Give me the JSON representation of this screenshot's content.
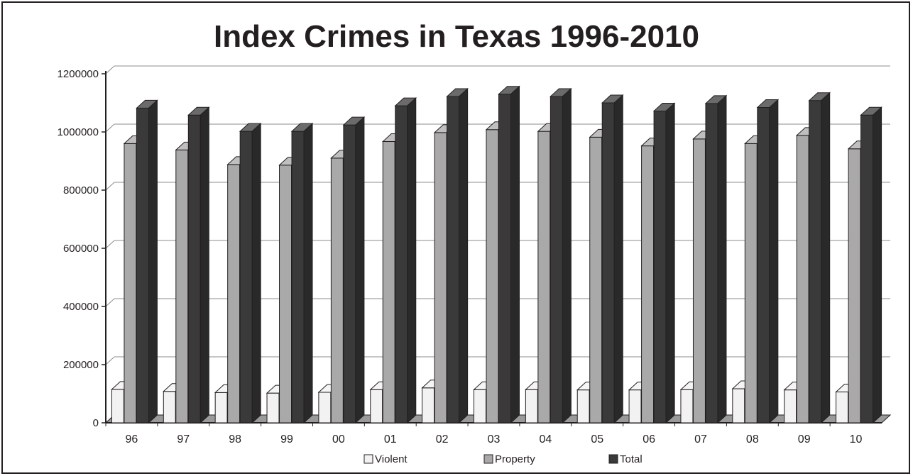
{
  "chart_data": {
    "type": "bar",
    "title": "Index Crimes in Texas 1996-2010",
    "xlabel": "",
    "ylabel": "",
    "categories": [
      "96",
      "97",
      "98",
      "99",
      "00",
      "01",
      "02",
      "03",
      "04",
      "05",
      "06",
      "07",
      "08",
      "09",
      "10"
    ],
    "series": [
      {
        "name": "Violent",
        "color": "#f2f2f2",
        "values": [
          115000,
          108000,
          104000,
          102000,
          105000,
          114000,
          120000,
          114000,
          114000,
          113000,
          113000,
          114000,
          117000,
          113000,
          106000
        ]
      },
      {
        "name": "Property",
        "color": "#a9a9a9",
        "values": [
          960000,
          938000,
          888000,
          886000,
          910000,
          967000,
          998000,
          1008000,
          1002000,
          982000,
          952000,
          976000,
          960000,
          988000,
          942000
        ]
      },
      {
        "name": "Total",
        "color": "#3a3a3a",
        "values": [
          1082000,
          1058000,
          1002000,
          1002000,
          1024000,
          1090000,
          1122000,
          1130000,
          1122000,
          1100000,
          1072000,
          1098000,
          1084000,
          1108000,
          1058000
        ]
      }
    ],
    "ylim": [
      0,
      1200000
    ],
    "yticks": [
      "0",
      "200000",
      "400000",
      "600000",
      "800000",
      "1000000",
      "1200000"
    ],
    "grid": true,
    "legend_position": "bottom"
  }
}
